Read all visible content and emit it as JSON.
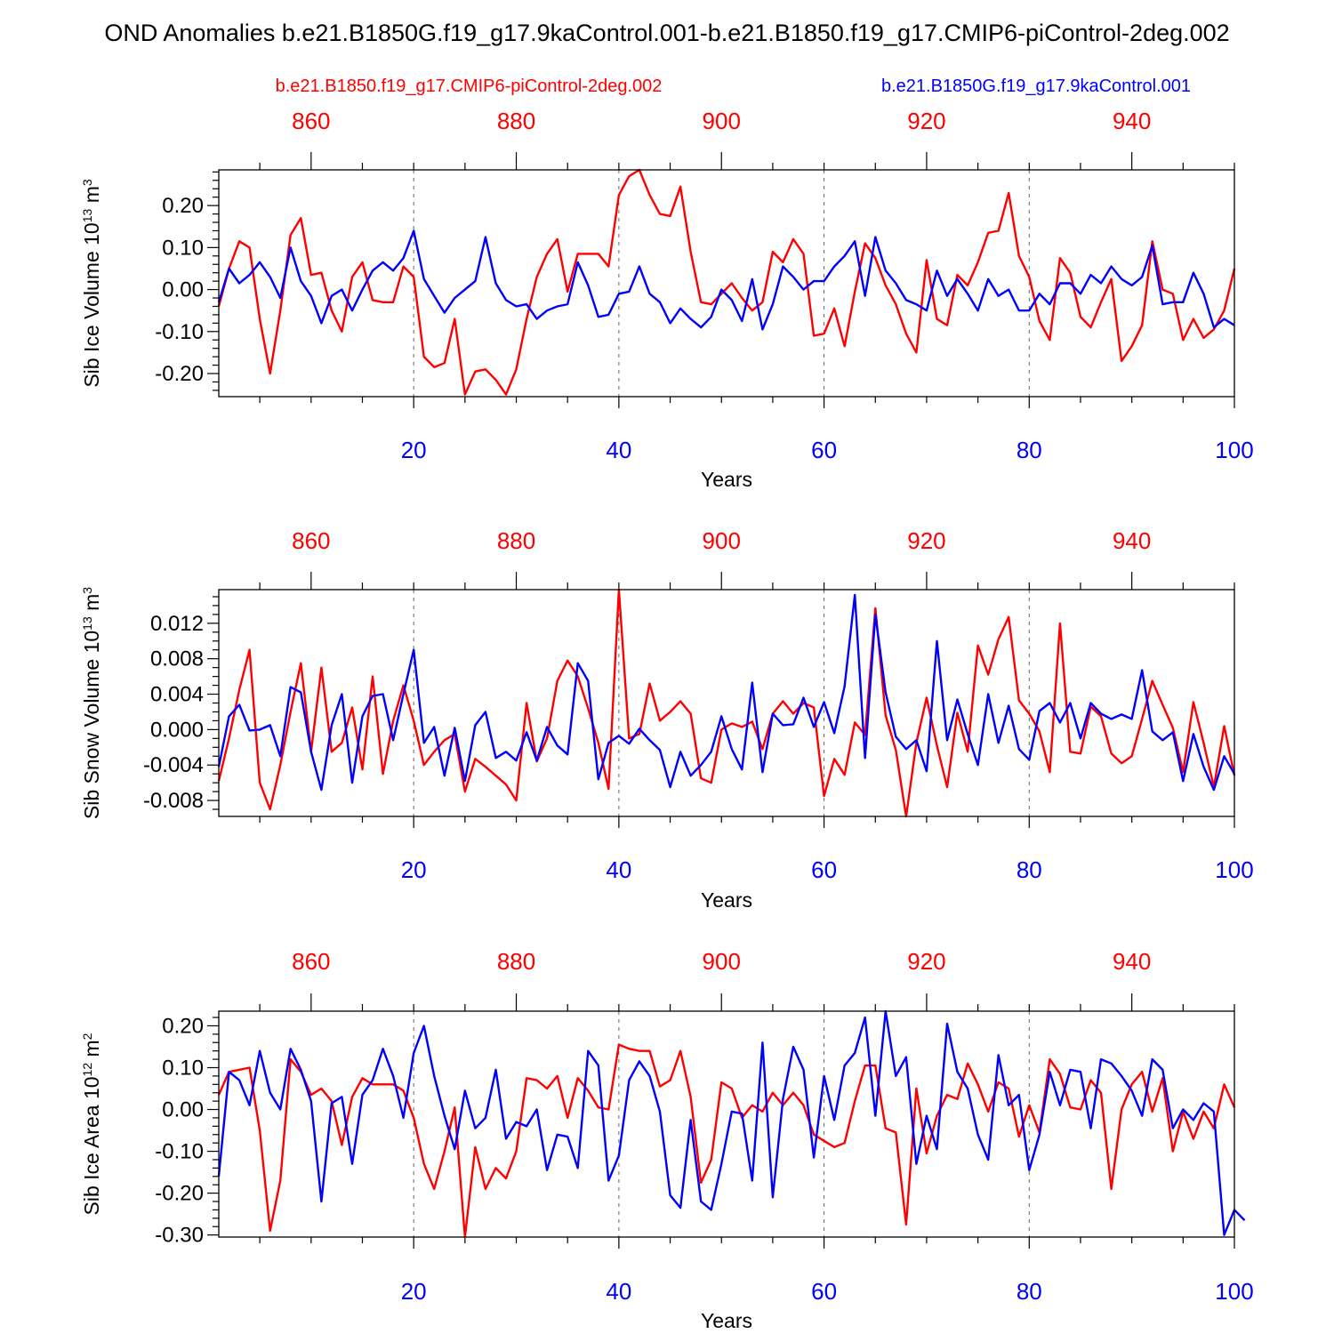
{
  "title": "OND Anomalies b.e21.B1850G.f19_g17.9kaControl.001-b.e21.B1850.f19_g17.CMIP6-piControl-2deg.002",
  "legend": {
    "red_label": "b.e21.B1850.f19_g17.CMIP6-piControl-2deg.002",
    "blue_label": "b.e21.B1850G.f19_g17.9kaControl.001"
  },
  "colors": {
    "red": "#ff0000",
    "blue": "#0000ff",
    "axis": "#000000"
  },
  "chart_data": [
    {
      "type": "line",
      "ylabel_main": "Sib Ice Volume 10",
      "ylabel_exp": "13",
      "ylabel_unit": " m",
      "ylabel_unit_exp": "3",
      "xlabel": "Years",
      "xlim": [
        1,
        100
      ],
      "ylim": [
        -0.255,
        0.285
      ],
      "yticks": [
        -0.2,
        -0.1,
        0.0,
        0.1,
        0.2
      ],
      "ytick_labels": [
        "-0.20",
        "-0.10",
        "0.00",
        "0.10",
        "0.20"
      ],
      "yminor_step": 0.02,
      "xticks_bottom": [
        20,
        40,
        60,
        80,
        100
      ],
      "xtick_labels_bottom": [
        "20",
        "40",
        "60",
        "80",
        "100"
      ],
      "xticks_top": [
        10,
        30,
        50,
        70,
        90
      ],
      "xtick_labels_top": [
        "860",
        "880",
        "900",
        "920",
        "940"
      ],
      "grid_x": [
        20,
        40,
        60,
        80
      ],
      "series": [
        {
          "name": "b.e21.B1850.f19_g17.CMIP6-piControl-2deg.002",
          "color": "red",
          "x_start": 1,
          "values": [
            -0.04,
            0.05,
            0.115,
            0.1,
            -0.07,
            -0.2,
            -0.05,
            0.13,
            0.17,
            0.035,
            0.04,
            -0.05,
            -0.1,
            0.03,
            0.065,
            -0.025,
            -0.03,
            -0.03,
            0.055,
            0.03,
            -0.16,
            -0.185,
            -0.175,
            -0.07,
            -0.25,
            -0.195,
            -0.19,
            -0.215,
            -0.25,
            -0.19,
            -0.07,
            0.03,
            0.085,
            0.12,
            -0.005,
            0.085,
            0.085,
            0.085,
            0.055,
            0.225,
            0.27,
            0.285,
            0.225,
            0.18,
            0.175,
            0.245,
            0.09,
            -0.03,
            -0.035,
            -0.01,
            0.015,
            -0.02,
            -0.05,
            -0.03,
            0.09,
            0.065,
            0.12,
            0.085,
            -0.11,
            -0.105,
            -0.045,
            -0.135,
            -0.005,
            0.11,
            0.075,
            0.01,
            -0.035,
            -0.105,
            -0.15,
            0.07,
            -0.07,
            -0.085,
            0.035,
            0.01,
            0.065,
            0.135,
            0.14,
            0.23,
            0.08,
            0.03,
            -0.075,
            -0.12,
            0.075,
            0.04,
            -0.065,
            -0.09,
            -0.03,
            0.025,
            -0.17,
            -0.135,
            -0.085,
            0.115,
            0.0,
            -0.01,
            -0.12,
            -0.07,
            -0.115,
            -0.095,
            -0.05,
            0.05
          ]
        },
        {
          "name": "b.e21.B1850G.f19_g17.9kaControl.001",
          "color": "blue",
          "x_start": 1,
          "values": [
            -0.03,
            0.05,
            0.015,
            0.035,
            0.065,
            0.03,
            -0.02,
            0.1,
            0.02,
            -0.015,
            -0.08,
            -0.015,
            0.0,
            -0.05,
            0.0,
            0.045,
            0.065,
            0.045,
            0.075,
            0.14,
            0.025,
            -0.015,
            -0.055,
            -0.02,
            0.0,
            0.02,
            0.125,
            0.015,
            -0.025,
            -0.04,
            -0.035,
            -0.07,
            -0.05,
            -0.04,
            -0.035,
            0.065,
            0.01,
            -0.065,
            -0.06,
            -0.01,
            -0.005,
            0.055,
            -0.01,
            -0.03,
            -0.08,
            -0.045,
            -0.07,
            -0.09,
            -0.065,
            0.0,
            -0.025,
            -0.075,
            0.025,
            -0.095,
            -0.035,
            0.055,
            0.03,
            0.0,
            0.02,
            0.02,
            0.055,
            0.08,
            0.115,
            -0.015,
            0.125,
            0.045,
            0.015,
            -0.025,
            -0.035,
            -0.05,
            0.045,
            -0.015,
            0.025,
            -0.01,
            -0.05,
            0.025,
            -0.015,
            0.0,
            -0.05,
            -0.05,
            -0.01,
            -0.035,
            0.015,
            0.015,
            -0.01,
            0.035,
            0.015,
            0.055,
            0.025,
            0.01,
            0.03,
            0.105,
            -0.035,
            -0.03,
            -0.03,
            0.04,
            -0.01,
            -0.09,
            -0.07,
            -0.085
          ]
        }
      ]
    },
    {
      "type": "line",
      "ylabel_main": "Sib Snow Volume 10",
      "ylabel_exp": "13",
      "ylabel_unit": " m",
      "ylabel_unit_exp": "3",
      "xlabel": "Years",
      "xlim": [
        1,
        100
      ],
      "ylim": [
        -0.0098,
        0.0158
      ],
      "yticks": [
        -0.008,
        -0.004,
        0.0,
        0.004,
        0.008,
        0.012
      ],
      "ytick_labels": [
        "-0.008",
        "-0.004",
        "0.000",
        "0.004",
        "0.008",
        "0.012"
      ],
      "yminor_step": 0.001,
      "xticks_bottom": [
        20,
        40,
        60,
        80,
        100
      ],
      "xtick_labels_bottom": [
        "20",
        "40",
        "60",
        "80",
        "100"
      ],
      "xticks_top": [
        10,
        30,
        50,
        70,
        90
      ],
      "xtick_labels_top": [
        "860",
        "880",
        "900",
        "920",
        "940"
      ],
      "grid_x": [
        20,
        40,
        60,
        80
      ],
      "series": [
        {
          "name": "b.e21.B1850.f19_g17.CMIP6-piControl-2deg.002",
          "color": "red",
          "x_start": 1,
          "values": [
            -0.0058,
            -0.001,
            0.0045,
            0.009,
            -0.006,
            -0.009,
            -0.004,
            0.002,
            0.0075,
            -0.0025,
            0.007,
            -0.0025,
            -0.0015,
            0.0025,
            -0.0045,
            0.006,
            -0.005,
            0.001,
            0.005,
            0.001,
            -0.004,
            -0.0025,
            -0.0012,
            -0.0005,
            -0.007,
            -0.0033,
            -0.0042,
            -0.0052,
            -0.0062,
            -0.008,
            0.003,
            -0.0036,
            -0.001,
            0.0055,
            0.0078,
            0.006,
            0.0024,
            -0.0015,
            -0.0067,
            0.0158,
            -0.001,
            -0.0005,
            0.0052,
            0.001,
            0.002,
            0.0032,
            0.0018,
            -0.0055,
            -0.006,
            0.0,
            0.0007,
            0.0003,
            0.0009,
            -0.0022,
            0.0018,
            0.0032,
            0.0018,
            0.003,
            0.0025,
            -0.0075,
            -0.0033,
            -0.0051,
            0.0008,
            -0.0006,
            0.0137,
            0.0016,
            -0.0023,
            -0.0098,
            -0.0015,
            0.0036,
            -0.0018,
            -0.0065,
            0.0019,
            -0.0025,
            0.0095,
            0.0062,
            0.0102,
            0.0127,
            0.0033,
            0.0018,
            -0.0002,
            -0.0048,
            0.012,
            -0.0025,
            -0.0027,
            0.0026,
            0.0015,
            -0.0027,
            -0.0038,
            -0.003,
            0.0012,
            0.0055,
            0.0028,
            0.0002,
            -0.0048,
            0.0031,
            -0.0015,
            -0.0065,
            0.0004,
            -0.0052
          ]
        },
        {
          "name": "b.e21.B1850G.f19_g17.9kaControl.001",
          "color": "blue",
          "x_start": 1,
          "values": [
            -0.0042,
            0.0015,
            0.0028,
            -0.0001,
            0.0,
            0.0005,
            -0.003,
            0.0048,
            0.0042,
            -0.0025,
            -0.0068,
            0.0005,
            0.004,
            -0.006,
            0.0015,
            0.0038,
            0.004,
            -0.0012,
            0.004,
            0.009,
            -0.0015,
            0.0003,
            -0.0052,
            0.0002,
            -0.0058,
            0.0005,
            0.002,
            -0.0032,
            -0.0025,
            -0.0035,
            -0.0003,
            -0.0035,
            0.0003,
            -0.0018,
            -0.0028,
            0.0075,
            0.0055,
            -0.0056,
            -0.0015,
            -0.0007,
            -0.0016,
            0.0001,
            -0.0012,
            -0.0023,
            -0.0065,
            -0.0025,
            -0.0052,
            -0.004,
            -0.0025,
            0.0015,
            -0.0022,
            -0.0045,
            0.0053,
            -0.0048,
            0.0018,
            0.0005,
            0.0006,
            0.0036,
            0.0003,
            0.0031,
            -0.0004,
            0.0049,
            0.0152,
            -0.0032,
            0.013,
            0.0042,
            -0.0008,
            -0.0022,
            -0.0012,
            -0.0047,
            0.01,
            -0.0012,
            0.0034,
            -0.0005,
            -0.004,
            0.004,
            -0.0015,
            0.0027,
            -0.0022,
            -0.0034,
            0.0021,
            0.003,
            0.0008,
            0.003,
            -0.001,
            0.003,
            0.0018,
            0.0012,
            0.0017,
            0.0012,
            0.0067,
            -0.0002,
            -0.0012,
            -0.0003,
            -0.0058,
            -0.0005,
            -0.0042,
            -0.0068,
            -0.003,
            -0.005
          ]
        }
      ]
    },
    {
      "type": "line",
      "ylabel_main": "Sib Ice Area 10",
      "ylabel_exp": "12",
      "ylabel_unit": " m",
      "ylabel_unit_exp": "2",
      "xlabel": "Years",
      "xlim": [
        1,
        100
      ],
      "ylim": [
        -0.305,
        0.235
      ],
      "yticks": [
        -0.3,
        -0.2,
        -0.1,
        0.0,
        0.1,
        0.2
      ],
      "ytick_labels": [
        "-0.30",
        "-0.20",
        "-0.10",
        "0.00",
        "0.10",
        "0.20"
      ],
      "yminor_step": 0.02,
      "xticks_bottom": [
        20,
        40,
        60,
        80,
        100
      ],
      "xtick_labels_bottom": [
        "20",
        "40",
        "60",
        "80",
        "100"
      ],
      "xticks_top": [
        10,
        30,
        50,
        70,
        90
      ],
      "xtick_labels_top": [
        "860",
        "880",
        "900",
        "920",
        "940"
      ],
      "grid_x": [
        20,
        40,
        60,
        80
      ],
      "series": [
        {
          "name": "b.e21.B1850.f19_g17.CMIP6-piControl-2deg.002",
          "color": "red",
          "x_start": 1,
          "values": [
            0.035,
            0.09,
            0.095,
            0.1,
            -0.05,
            -0.29,
            -0.17,
            0.12,
            0.09,
            0.035,
            0.05,
            0.02,
            -0.085,
            0.03,
            0.075,
            0.06,
            0.06,
            0.06,
            0.045,
            -0.02,
            -0.13,
            -0.19,
            -0.1,
            0.005,
            -0.305,
            -0.09,
            -0.19,
            -0.14,
            -0.165,
            -0.1,
            0.075,
            0.07,
            0.05,
            0.08,
            -0.02,
            0.075,
            0.045,
            0.005,
            0.0,
            0.155,
            0.145,
            0.14,
            0.14,
            0.055,
            0.07,
            0.14,
            0.03,
            -0.175,
            -0.12,
            0.065,
            0.05,
            -0.02,
            0.01,
            -0.005,
            0.04,
            0.01,
            0.04,
            0.01,
            -0.06,
            -0.075,
            -0.09,
            -0.08,
            0.02,
            0.105,
            0.105,
            -0.045,
            -0.055,
            -0.275,
            0.05,
            -0.105,
            -0.015,
            0.035,
            0.025,
            0.11,
            0.06,
            -0.005,
            0.065,
            0.05,
            -0.065,
            0.01,
            -0.055,
            0.12,
            0.085,
            0.005,
            0.0,
            0.07,
            0.04,
            -0.19,
            0.0,
            0.06,
            0.09,
            -0.005,
            0.075,
            -0.1,
            -0.005,
            -0.07,
            -0.005,
            -0.045,
            0.06,
            0.005
          ]
        },
        {
          "name": "b.e21.B1850G.f19_g17.9kaControl.001",
          "color": "blue",
          "x_start": 1,
          "values": [
            -0.16,
            0.09,
            0.07,
            0.01,
            0.14,
            0.04,
            0.0,
            0.145,
            0.095,
            0.02,
            -0.22,
            0.015,
            0.03,
            -0.13,
            0.035,
            0.07,
            0.145,
            0.08,
            -0.02,
            0.135,
            0.2,
            0.08,
            -0.015,
            -0.095,
            0.045,
            -0.045,
            -0.02,
            0.095,
            -0.07,
            -0.03,
            -0.04,
            0.0,
            -0.145,
            -0.06,
            -0.065,
            -0.14,
            0.14,
            0.105,
            -0.17,
            -0.11,
            0.07,
            0.115,
            0.08,
            -0.005,
            -0.205,
            -0.235,
            -0.025,
            -0.22,
            -0.24,
            -0.13,
            -0.005,
            -0.01,
            -0.17,
            0.16,
            -0.21,
            0.025,
            0.15,
            0.095,
            -0.115,
            0.08,
            -0.025,
            0.105,
            0.135,
            0.22,
            -0.015,
            0.235,
            0.08,
            0.125,
            -0.13,
            -0.015,
            -0.095,
            0.205,
            0.09,
            0.05,
            -0.06,
            -0.12,
            0.13,
            0.01,
            0.035,
            -0.145,
            -0.06,
            0.09,
            0.01,
            0.095,
            0.09,
            -0.045,
            0.12,
            0.11,
            0.08,
            0.045,
            -0.015,
            0.12,
            0.095,
            -0.045,
            0.0,
            -0.025,
            0.015,
            -0.005,
            -0.3,
            -0.24,
            -0.265
          ]
        }
      ]
    }
  ]
}
